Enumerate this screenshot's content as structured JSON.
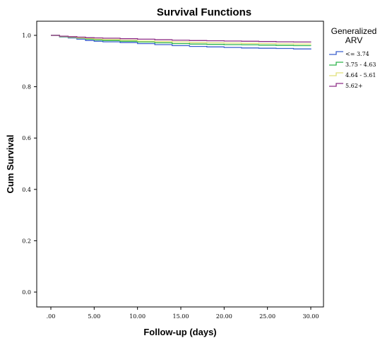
{
  "chart_data": {
    "type": "line",
    "title": "Survival Functions",
    "xlabel": "Follow-up (days)",
    "ylabel": "Cum Survival",
    "xlim": [
      0,
      30
    ],
    "ylim": [
      0,
      1.0
    ],
    "x_ticks": [
      ".00",
      "5.00",
      "10.00",
      "15.00",
      "20.00",
      "25.00",
      "30.00"
    ],
    "x_tick_values": [
      0,
      5,
      10,
      15,
      20,
      25,
      30
    ],
    "y_ticks": [
      "0.0",
      "0.2",
      "0.4",
      "0.6",
      "0.8",
      "1.0"
    ],
    "y_tick_values": [
      0,
      0.2,
      0.4,
      0.6,
      0.8,
      1.0
    ],
    "grid": false,
    "legend": {
      "title_line1": "Generalized",
      "title_line2": "ARV",
      "placement": "right"
    },
    "series": [
      {
        "name": "<= 3.74",
        "color": "#3a5fcd",
        "x": [
          0,
          1,
          2,
          3,
          4,
          5,
          6,
          8,
          10,
          12,
          14,
          16,
          18,
          20,
          22,
          24,
          26,
          28,
          30
        ],
        "y": [
          1.0,
          0.994,
          0.99,
          0.985,
          0.98,
          0.977,
          0.975,
          0.972,
          0.968,
          0.964,
          0.96,
          0.957,
          0.955,
          0.953,
          0.951,
          0.95,
          0.949,
          0.947,
          0.945
        ]
      },
      {
        "name": "3.75 - 4.63",
        "color": "#2db54a",
        "x": [
          0,
          1,
          2,
          3,
          4,
          5,
          6,
          8,
          10,
          12,
          14,
          16,
          18,
          20,
          22,
          24,
          26,
          28,
          30
        ],
        "y": [
          1.0,
          0.995,
          0.992,
          0.989,
          0.985,
          0.982,
          0.98,
          0.977,
          0.974,
          0.971,
          0.968,
          0.966,
          0.965,
          0.964,
          0.963,
          0.962,
          0.961,
          0.96,
          0.959
        ]
      },
      {
        "name": "4.64 - 5.61",
        "color": "#e0e07a",
        "x": [
          0,
          1,
          2,
          3,
          4,
          5,
          6,
          8,
          10,
          12,
          14,
          16,
          18,
          20,
          22,
          24,
          26,
          28,
          30
        ],
        "y": [
          1.0,
          0.996,
          0.993,
          0.99,
          0.988,
          0.985,
          0.984,
          0.981,
          0.978,
          0.976,
          0.974,
          0.972,
          0.971,
          0.97,
          0.969,
          0.968,
          0.967,
          0.966,
          0.965
        ]
      },
      {
        "name": "5.62+",
        "color": "#8e2f86",
        "x": [
          0,
          1,
          2,
          3,
          4,
          5,
          6,
          8,
          10,
          12,
          14,
          16,
          18,
          20,
          22,
          24,
          26,
          28,
          30
        ],
        "y": [
          1.0,
          0.997,
          0.995,
          0.993,
          0.991,
          0.99,
          0.989,
          0.987,
          0.985,
          0.983,
          0.981,
          0.98,
          0.979,
          0.978,
          0.977,
          0.976,
          0.975,
          0.974,
          0.973
        ]
      }
    ]
  }
}
